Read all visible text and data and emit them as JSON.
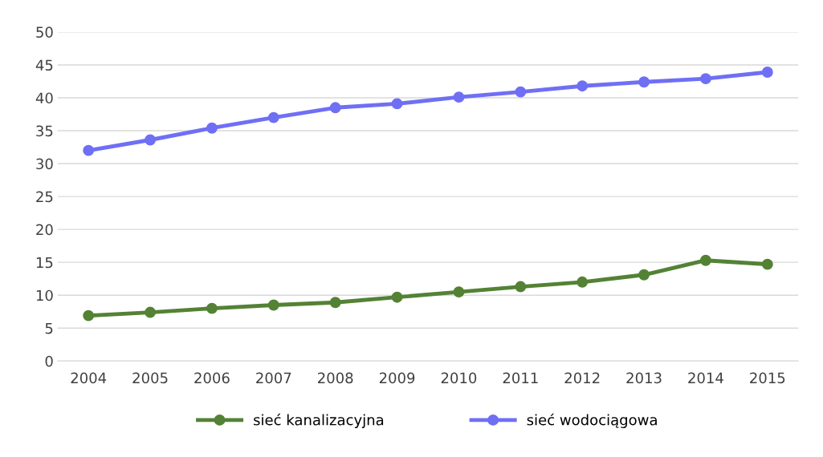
{
  "chart_data": {
    "type": "line",
    "categories": [
      "2004",
      "2005",
      "2006",
      "2007",
      "2008",
      "2009",
      "2010",
      "2011",
      "2012",
      "2013",
      "2014",
      "2015"
    ],
    "series": [
      {
        "name": "sieć kanalizacyjna",
        "color": "#548235",
        "values": [
          6.9,
          7.4,
          8.0,
          8.5,
          8.9,
          9.7,
          10.5,
          11.3,
          12.0,
          13.1,
          15.3,
          14.7
        ]
      },
      {
        "name": "sieć wodociągowa",
        "color": "#6f6ff5",
        "values": [
          32.0,
          33.6,
          35.4,
          37.0,
          38.5,
          39.1,
          40.1,
          40.9,
          41.8,
          42.4,
          42.9,
          43.9
        ]
      }
    ],
    "ylim": [
      0,
      50
    ],
    "yticks": [
      0,
      5,
      10,
      15,
      20,
      25,
      30,
      35,
      40,
      45,
      50
    ],
    "grid": "y",
    "legend": "bottom",
    "marker": "circle",
    "line_style": "solid"
  }
}
